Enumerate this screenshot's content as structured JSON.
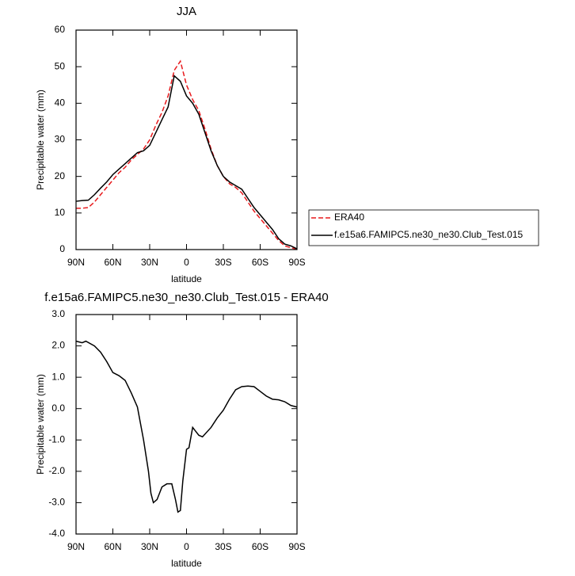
{
  "chart_data": [
    {
      "type": "line",
      "title": "JJA",
      "x_label": "latitude",
      "y_label": "Precipitable water (mm)",
      "x": [
        90,
        85,
        80,
        75,
        70,
        65,
        60,
        55,
        50,
        45,
        40,
        35,
        30,
        25,
        20,
        15,
        10,
        5,
        0,
        -5,
        -10,
        -15,
        -20,
        -25,
        -30,
        -35,
        -40,
        -45,
        -50,
        -55,
        -60,
        -65,
        -70,
        -75,
        -80,
        -85,
        -90
      ],
      "series": [
        {
          "name": "ERA40",
          "color": "#e8191c",
          "dashed": true,
          "values": [
            11.3,
            11.3,
            11.5,
            13,
            15,
            17,
            19,
            21,
            22.5,
            24.5,
            26,
            27.5,
            30,
            34,
            37.5,
            42,
            49,
            51.5,
            45,
            41,
            38,
            33,
            27.5,
            23,
            20,
            18,
            17,
            15.5,
            13,
            10.5,
            8.5,
            6.5,
            4.5,
            2.5,
            1,
            0.5,
            0.1
          ]
        },
        {
          "name": "f.e15a6.FAMIPC5.ne30_ne30.Club_Test.015",
          "color": "#000000",
          "dashed": false,
          "values": [
            13.2,
            13.4,
            13.5,
            15,
            16.8,
            18.5,
            20.5,
            22,
            23.5,
            25,
            26.5,
            27,
            28.5,
            32,
            35.5,
            39,
            47.5,
            46,
            42,
            40,
            37,
            32,
            27,
            23,
            20,
            18.5,
            17.5,
            16.5,
            14,
            11.5,
            9.5,
            7.5,
            5.5,
            3,
            1.5,
            1,
            0.2
          ]
        }
      ],
      "xlim": [
        90,
        -90
      ],
      "xticks": [
        {
          "value": 90,
          "label": "90N"
        },
        {
          "value": 60,
          "label": "60N"
        },
        {
          "value": 30,
          "label": "30N"
        },
        {
          "value": 0,
          "label": "0"
        },
        {
          "value": -30,
          "label": "30S"
        },
        {
          "value": -60,
          "label": "60S"
        },
        {
          "value": -90,
          "label": "90S"
        }
      ],
      "ylim": [
        0,
        60
      ],
      "yticks": [
        0,
        10,
        20,
        30,
        40,
        50,
        60
      ]
    },
    {
      "type": "line",
      "title": "f.e15a6.FAMIPC5.ne30_ne30.Club_Test.015 - ERA40",
      "x_label": "latitude",
      "y_label": "Precipitable water (mm)",
      "x": [
        90,
        85,
        82,
        75,
        70,
        65,
        60,
        55,
        50,
        45,
        40,
        35,
        31,
        29,
        27,
        24,
        20,
        16,
        12,
        9,
        7,
        5,
        3,
        0,
        -2,
        -5,
        -7,
        -10,
        -13,
        -20,
        -25,
        -30,
        -35,
        -40,
        -45,
        -50,
        -55,
        -60,
        -65,
        -70,
        -75,
        -80,
        -85,
        -90
      ],
      "series": [
        {
          "color": "#000000",
          "dashed": false,
          "values": [
            2.15,
            2.1,
            2.15,
            2.0,
            1.8,
            1.5,
            1.15,
            1.05,
            0.9,
            0.5,
            0.05,
            -1.0,
            -2.0,
            -2.7,
            -3.0,
            -2.9,
            -2.5,
            -2.4,
            -2.4,
            -2.9,
            -3.3,
            -3.25,
            -2.3,
            -1.3,
            -1.25,
            -0.6,
            -0.7,
            -0.85,
            -0.9,
            -0.6,
            -0.3,
            -0.05,
            0.3,
            0.6,
            0.7,
            0.72,
            0.7,
            0.55,
            0.4,
            0.3,
            0.28,
            0.22,
            0.1,
            0.05
          ]
        }
      ],
      "xlim": [
        90,
        -90
      ],
      "xticks": [
        {
          "value": 90,
          "label": "90N"
        },
        {
          "value": 60,
          "label": "60N"
        },
        {
          "value": 30,
          "label": "30N"
        },
        {
          "value": 0,
          "label": "0"
        },
        {
          "value": -30,
          "label": "30S"
        },
        {
          "value": -60,
          "label": "60S"
        },
        {
          "value": -90,
          "label": "90S"
        }
      ],
      "ylim": [
        -4,
        3
      ],
      "yticks": [
        {
          "value": -4,
          "label": "-4.0"
        },
        {
          "value": -3,
          "label": "-3.0"
        },
        {
          "value": -2,
          "label": "-2.0"
        },
        {
          "value": -1,
          "label": "-1.0"
        },
        {
          "value": 0,
          "label": "0.0"
        },
        {
          "value": 1,
          "label": "1.0"
        },
        {
          "value": 2,
          "label": "2.0"
        },
        {
          "value": 3,
          "label": "3.0"
        }
      ]
    }
  ]
}
